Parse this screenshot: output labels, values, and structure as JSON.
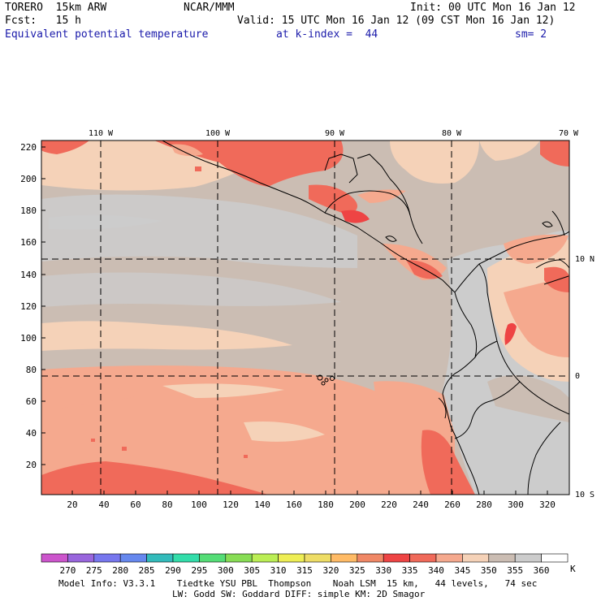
{
  "header": {
    "model": "TORERO  15km ARW",
    "center": "NCAR/MMM",
    "init": "Init: 00 UTC Mon 16 Jan 12",
    "fcst": "Fcst:   15 h",
    "valid": "Valid: 15 UTC Mon 16 Jan 12 (09 CST Mon 16 Jan 12)",
    "field": "Equivalent potential temperature",
    "level": "at k-index =  44",
    "smooth": "sm= 2"
  },
  "map": {
    "top_lon_labels": [
      "110 W",
      "100 W",
      "90 W",
      "80 W",
      "70 W"
    ],
    "right_lat_labels": [
      "10 N",
      "0",
      "10 S"
    ],
    "y_grid_labels": [
      "220",
      "200",
      "180",
      "160",
      "140",
      "120",
      "100",
      "80",
      "60",
      "40",
      "20"
    ],
    "x_grid_labels": [
      "20",
      "40",
      "60",
      "80",
      "100",
      "120",
      "140",
      "160",
      "180",
      "200",
      "220",
      "240",
      "260",
      "280",
      "300",
      "320"
    ]
  },
  "colorbar": {
    "unit": "K",
    "labels": [
      "270",
      "275",
      "280",
      "285",
      "290",
      "295",
      "300",
      "305",
      "310",
      "315",
      "320",
      "325",
      "330",
      "335",
      "340",
      "345",
      "350",
      "355",
      "360"
    ],
    "colors": [
      "#cc55cc",
      "#9966dd",
      "#7777ee",
      "#6688ee",
      "#33bbbb",
      "#33ddaa",
      "#55dd77",
      "#88dd55",
      "#bbee55",
      "#eeee55",
      "#eedd66",
      "#ffbb66",
      "#f08866",
      "#ee4444",
      "#f06a5a",
      "#f5a98e",
      "#f5d2b8",
      "#cbbdb3",
      "#cccccc",
      "#ffffff"
    ]
  },
  "footer": {
    "line1": "Model Info: V3.3.1    Tiedtke YSU PBL  Thompson    Noah LSM  15 km,   44 levels,   74 sec",
    "line2": "LW: Godd SW: Goddard DIFF: simple KM: 2D Smagor"
  }
}
